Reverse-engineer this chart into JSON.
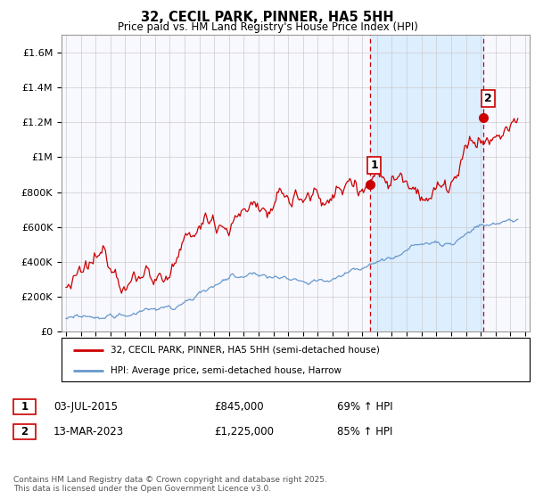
{
  "title": "32, CECIL PARK, PINNER, HA5 5HH",
  "subtitle": "Price paid vs. HM Land Registry's House Price Index (HPI)",
  "ylim": [
    0,
    1700000
  ],
  "yticks": [
    0,
    200000,
    400000,
    600000,
    800000,
    1000000,
    1200000,
    1400000,
    1600000
  ],
  "ytick_labels": [
    "£0",
    "£200K",
    "£400K",
    "£600K",
    "£800K",
    "£1M",
    "£1.2M",
    "£1.4M",
    "£1.6M"
  ],
  "xlim_start": 1994.7,
  "xlim_end": 2026.3,
  "xtick_start": 1995,
  "xtick_end": 2026,
  "sale1_date": 2015.5,
  "sale1_price": 845000,
  "sale1_label": "1",
  "sale2_date": 2023.2,
  "sale2_price": 1225000,
  "sale2_label": "2",
  "line1_color": "#cc0000",
  "line2_color": "#6699cc",
  "vline_color": "#cc0000",
  "shade_color": "#ddeeff",
  "marker_color": "#cc0000",
  "legend_label1": "32, CECIL PARK, PINNER, HA5 5HH (semi-detached house)",
  "legend_label2": "HPI: Average price, semi-detached house, Harrow",
  "table_row1": [
    "1",
    "03-JUL-2015",
    "£845,000",
    "69% ↑ HPI"
  ],
  "table_row2": [
    "2",
    "13-MAR-2023",
    "£1,225,000",
    "85% ↑ HPI"
  ],
  "footnote": "Contains HM Land Registry data © Crown copyright and database right 2025.\nThis data is licensed under the Open Government Licence v3.0.",
  "background_color": "#ffffff",
  "grid_color": "#cccccc",
  "chart_bg": "#f8f8ff"
}
